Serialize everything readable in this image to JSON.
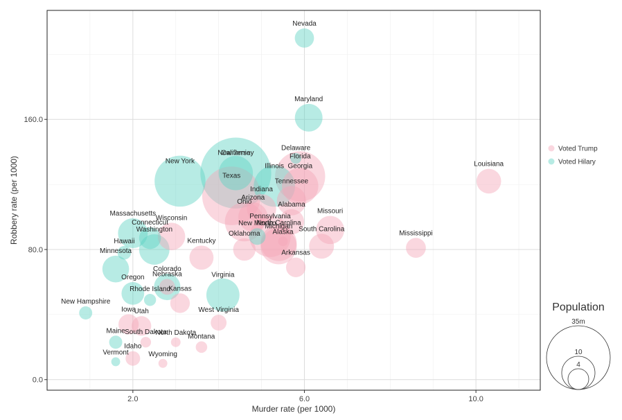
{
  "chart_data": {
    "type": "scatter",
    "title": "",
    "xlabel": "Murder rate (per 1000)",
    "ylabel": "Robbery rate (per 1000)",
    "xlim": [
      0.0,
      11.5
    ],
    "ylim": [
      -6.5,
      227
    ],
    "xticks": [
      2.0,
      6.0,
      10.0
    ],
    "xtick_labels": [
      "2.0",
      "6.0",
      "10.0"
    ],
    "yticks": [
      0,
      80,
      160
    ],
    "ytick_labels": [
      "0.0",
      "80.0",
      "160.0"
    ],
    "grid": true,
    "legend_position": "right",
    "series": [
      {
        "name": "Voted Trump",
        "color": "#f4a6b8"
      },
      {
        "name": "Voted Hilary",
        "color": "#5fd3c4"
      }
    ],
    "size_legend": {
      "title": "Population",
      "items": [
        {
          "label": "35m",
          "value": 35
        },
        {
          "label": "10",
          "value": 10
        },
        {
          "label": "4",
          "value": 4
        }
      ]
    },
    "points": [
      {
        "state": "Nevada",
        "x": 6.0,
        "y": 210,
        "pop": 2.8,
        "group": "Voted Hilary"
      },
      {
        "state": "Maryland",
        "x": 6.1,
        "y": 161,
        "pop": 5.8,
        "group": "Voted Hilary"
      },
      {
        "state": "Delaware",
        "x": 5.8,
        "y": 136,
        "pop": 0.9,
        "group": "Voted Hilary"
      },
      {
        "state": "Florida",
        "x": 5.9,
        "y": 125,
        "pop": 19,
        "group": "Voted Trump"
      },
      {
        "state": "Georgia",
        "x": 5.9,
        "y": 119,
        "pop": 10,
        "group": "Voted Trump"
      },
      {
        "state": "Louisiana",
        "x": 10.3,
        "y": 122,
        "pop": 4.6,
        "group": "Voted Trump"
      },
      {
        "state": "New Jersey",
        "x": 4.4,
        "y": 127,
        "pop": 8.9,
        "group": "Voted Hilary"
      },
      {
        "state": "California",
        "x": 4.4,
        "y": 127,
        "pop": 38,
        "group": "Voted Hilary"
      },
      {
        "state": "New York",
        "x": 3.1,
        "y": 122,
        "pop": 19.6,
        "group": "Voted Hilary"
      },
      {
        "state": "Texas",
        "x": 4.3,
        "y": 113,
        "pop": 26,
        "group": "Voted Trump"
      },
      {
        "state": "Illinois",
        "x": 5.3,
        "y": 119,
        "pop": 12.9,
        "group": "Voted Hilary"
      },
      {
        "state": "Tennessee",
        "x": 5.7,
        "y": 110,
        "pop": 6.5,
        "group": "Voted Trump"
      },
      {
        "state": "Indiana",
        "x": 5.0,
        "y": 105,
        "pop": 6.5,
        "group": "Voted Trump"
      },
      {
        "state": "Missouri",
        "x": 6.6,
        "y": 92,
        "pop": 6.0,
        "group": "Voted Trump"
      },
      {
        "state": "Alabama",
        "x": 5.7,
        "y": 97,
        "pop": 4.8,
        "group": "Voted Trump"
      },
      {
        "state": "Mississippi",
        "x": 8.6,
        "y": 81,
        "pop": 3.0,
        "group": "Voted Trump"
      },
      {
        "state": "Ohio",
        "x": 4.6,
        "y": 97,
        "pop": 11.5,
        "group": "Voted Trump"
      },
      {
        "state": "Arizona",
        "x": 4.8,
        "y": 100,
        "pop": 6.5,
        "group": "Voted Trump"
      },
      {
        "state": "New Mexico",
        "x": 4.9,
        "y": 88,
        "pop": 2.1,
        "group": "Voted Hilary"
      },
      {
        "state": "Alaska",
        "x": 5.5,
        "y": 85,
        "pop": 0.7,
        "group": "Voted Trump"
      },
      {
        "state": "Pennsylvania",
        "x": 5.2,
        "y": 88,
        "pop": 12.8,
        "group": "Voted Trump"
      },
      {
        "state": "Michigan",
        "x": 5.4,
        "y": 82,
        "pop": 9.9,
        "group": "Voted Trump"
      },
      {
        "state": "South Carolina",
        "x": 6.4,
        "y": 82,
        "pop": 4.7,
        "group": "Voted Trump"
      },
      {
        "state": "North Carolina",
        "x": 5.4,
        "y": 84,
        "pop": 9.8,
        "group": "Voted Trump"
      },
      {
        "state": "Oklahoma",
        "x": 4.6,
        "y": 80,
        "pop": 3.8,
        "group": "Voted Trump"
      },
      {
        "state": "Arkansas",
        "x": 5.8,
        "y": 69,
        "pop": 2.9,
        "group": "Voted Trump"
      },
      {
        "state": "Kentucky",
        "x": 3.6,
        "y": 75,
        "pop": 4.4,
        "group": "Voted Trump"
      },
      {
        "state": "Wisconsin",
        "x": 2.9,
        "y": 88,
        "pop": 5.7,
        "group": "Voted Trump"
      },
      {
        "state": "Connecticut",
        "x": 2.4,
        "y": 87,
        "pop": 3.6,
        "group": "Voted Hilary"
      },
      {
        "state": "Massachusetts",
        "x": 2.0,
        "y": 90,
        "pop": 6.7,
        "group": "Voted Hilary"
      },
      {
        "state": "Hawaii",
        "x": 1.8,
        "y": 78,
        "pop": 1.4,
        "group": "Voted Hilary"
      },
      {
        "state": "Washington",
        "x": 2.5,
        "y": 80,
        "pop": 7.0,
        "group": "Voted Hilary"
      },
      {
        "state": "Minnesota",
        "x": 1.6,
        "y": 68,
        "pop": 5.4,
        "group": "Voted Hilary"
      },
      {
        "state": "Nebraska",
        "x": 2.8,
        "y": 57,
        "pop": 1.9,
        "group": "Voted Trump"
      },
      {
        "state": "Colorado",
        "x": 2.8,
        "y": 57,
        "pop": 5.3,
        "group": "Voted Hilary"
      },
      {
        "state": "Oregon",
        "x": 2.0,
        "y": 53,
        "pop": 3.9,
        "group": "Voted Hilary"
      },
      {
        "state": "Virginia",
        "x": 4.1,
        "y": 52,
        "pop": 8.3,
        "group": "Voted Hilary"
      },
      {
        "state": "Rhode Island",
        "x": 2.4,
        "y": 49,
        "pop": 1.1,
        "group": "Voted Hilary"
      },
      {
        "state": "Kansas",
        "x": 3.1,
        "y": 47,
        "pop": 2.9,
        "group": "Voted Trump"
      },
      {
        "state": "New Hampshire",
        "x": 0.9,
        "y": 41,
        "pop": 1.3,
        "group": "Voted Hilary"
      },
      {
        "state": "West Virginia",
        "x": 4.0,
        "y": 35,
        "pop": 1.9,
        "group": "Voted Trump"
      },
      {
        "state": "Utah",
        "x": 2.2,
        "y": 33,
        "pop": 2.9,
        "group": "Voted Trump"
      },
      {
        "state": "Iowa",
        "x": 1.9,
        "y": 34,
        "pop": 3.1,
        "group": "Voted Trump"
      },
      {
        "state": "North Dakota",
        "x": 3.0,
        "y": 23,
        "pop": 0.7,
        "group": "Voted Trump"
      },
      {
        "state": "South Dakota",
        "x": 2.3,
        "y": 23,
        "pop": 0.85,
        "group": "Voted Trump"
      },
      {
        "state": "Montana",
        "x": 3.6,
        "y": 20,
        "pop": 1.0,
        "group": "Voted Trump"
      },
      {
        "state": "Maine",
        "x": 1.6,
        "y": 23,
        "pop": 1.3,
        "group": "Voted Hilary"
      },
      {
        "state": "Idaho",
        "x": 2.0,
        "y": 13,
        "pop": 1.6,
        "group": "Voted Trump"
      },
      {
        "state": "Vermont",
        "x": 1.6,
        "y": 11,
        "pop": 0.6,
        "group": "Voted Hilary"
      },
      {
        "state": "Wyoming",
        "x": 2.7,
        "y": 10,
        "pop": 0.6,
        "group": "Voted Trump"
      }
    ]
  }
}
